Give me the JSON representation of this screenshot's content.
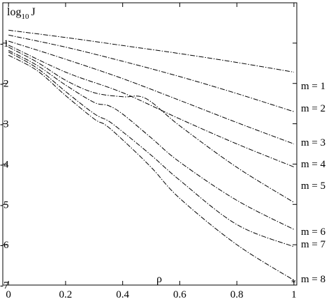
{
  "chart_data": {
    "type": "line",
    "ylabel_base": "log",
    "ylabel_sub": "10",
    "ylabel_var": "J",
    "xlabel": "ρ",
    "xlim": [
      -0.02,
      1.01
    ],
    "ylim": [
      -7,
      0
    ],
    "xticks": [
      0,
      0.2,
      0.4,
      0.6,
      0.8,
      1
    ],
    "xtick_labels": [
      "0",
      "0.2",
      "0.4",
      "0.6",
      "0.8",
      "1"
    ],
    "yticks": [
      -1,
      -2,
      -3,
      -4,
      -5,
      -6,
      -7
    ],
    "ytick_labels": [
      "-1",
      "-2",
      "-3",
      "-4",
      "-5",
      "-6",
      "-7"
    ],
    "line_style": "dash-dot",
    "series": [
      {
        "name": "m = 1",
        "x": [
          0,
          0.2,
          0.4,
          0.6,
          0.8,
          1
        ],
        "y": [
          -0.68,
          -0.86,
          -1.06,
          -1.26,
          -1.48,
          -1.72
        ]
      },
      {
        "name": "m = 2",
        "x": [
          0,
          0.2,
          0.4,
          0.6,
          0.8,
          1
        ],
        "y": [
          -0.8,
          -1.1,
          -1.45,
          -1.83,
          -2.25,
          -2.7
        ]
      },
      {
        "name": "m = 3",
        "x": [
          0,
          0.2,
          0.4,
          0.6,
          0.8,
          1
        ],
        "y": [
          -0.95,
          -1.4,
          -1.88,
          -2.42,
          -2.97,
          -3.5
        ]
      },
      {
        "name": "m = 4",
        "x": [
          0,
          0.2,
          0.4,
          0.6,
          0.8,
          1
        ],
        "y": [
          -1.05,
          -1.72,
          -2.23,
          -2.88,
          -3.5,
          -4.07
        ]
      },
      {
        "name": "m = 5",
        "x": [
          0,
          0.1,
          0.2,
          0.3,
          0.4,
          0.48,
          0.6,
          0.8,
          1
        ],
        "y": [
          -1.1,
          -1.47,
          -1.92,
          -2.23,
          -2.33,
          -2.37,
          -3.05,
          -4.08,
          -4.95
        ]
      },
      {
        "name": "m = 6",
        "x": [
          0,
          0.1,
          0.2,
          0.3,
          0.35,
          0.4,
          0.5,
          0.6,
          0.8,
          1
        ],
        "y": [
          -1.18,
          -1.55,
          -2.04,
          -2.47,
          -2.55,
          -2.76,
          -3.35,
          -3.95,
          -4.9,
          -5.62
        ]
      },
      {
        "name": "m = 7",
        "x": [
          0,
          0.1,
          0.2,
          0.3,
          0.35,
          0.4,
          0.5,
          0.6,
          0.8,
          1
        ],
        "y": [
          -1.22,
          -1.62,
          -2.2,
          -2.75,
          -2.93,
          -3.2,
          -3.78,
          -4.4,
          -5.5,
          -6.05
        ]
      },
      {
        "name": "m = 8",
        "x": [
          0,
          0.1,
          0.2,
          0.3,
          0.34,
          0.4,
          0.5,
          0.6,
          0.8,
          1
        ],
        "y": [
          -1.3,
          -1.68,
          -2.3,
          -2.88,
          -3.03,
          -3.4,
          -4.08,
          -4.85,
          -6.0,
          -6.88
        ]
      }
    ],
    "endpoint_marker": "*"
  }
}
